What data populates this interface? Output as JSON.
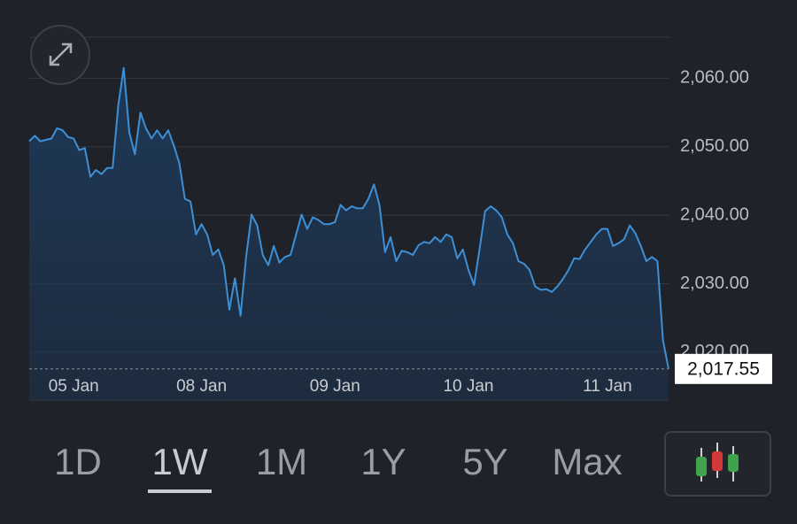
{
  "chart_data": {
    "type": "line",
    "x": [
      0,
      1,
      2,
      3,
      4,
      5,
      6,
      7,
      8,
      9,
      10,
      11,
      12,
      13,
      14,
      15,
      16,
      17,
      18,
      19,
      20,
      21,
      22,
      23,
      24,
      25,
      26,
      27,
      28,
      29,
      30,
      31,
      32,
      33,
      34,
      35,
      36,
      37,
      38,
      39,
      40,
      41,
      42,
      43,
      44,
      45,
      46,
      47,
      48,
      49,
      50,
      51,
      52,
      53,
      54,
      55,
      56,
      57,
      58,
      59,
      60,
      61,
      62,
      63,
      64,
      65,
      66,
      67,
      68,
      69,
      70,
      71,
      72,
      73,
      74,
      75,
      76,
      77,
      78,
      79,
      80,
      81,
      82,
      83,
      84,
      85,
      86,
      87,
      88,
      89,
      90,
      91,
      92,
      93,
      94,
      95,
      96,
      97,
      98,
      99,
      100,
      101,
      102,
      103,
      104,
      105,
      106,
      107,
      108,
      109,
      110,
      111,
      112,
      113,
      114,
      115
    ],
    "series": [
      {
        "color": "#3d8fd6",
        "values": [
          2050.8,
          2051.6,
          2050.8,
          2051,
          2051.2,
          2052.7,
          2052.4,
          2051.4,
          2051.2,
          2049.5,
          2049.8,
          2045.6,
          2046.6,
          2046,
          2046.9,
          2046.9,
          2056,
          2061.5,
          2052.1,
          2048.9,
          2055,
          2052.7,
          2051.2,
          2052.4,
          2051.2,
          2052.4,
          2050.2,
          2047.6,
          2042.4,
          2042,
          2037.2,
          2038.7,
          2037.2,
          2034.2,
          2035,
          2032.7,
          2026.2,
          2030.8,
          2025.3,
          2033.9,
          2040.1,
          2038.5,
          2034.2,
          2032.7,
          2035.5,
          2033.1,
          2033.9,
          2034.2,
          2037.2,
          2040.1,
          2038,
          2039.7,
          2039.3,
          2038.7,
          2038.7,
          2039,
          2041.5,
          2040.7,
          2041.3,
          2041,
          2041,
          2042.4,
          2044.5,
          2041.5,
          2034.6,
          2036.8,
          2033.3,
          2034.8,
          2034.6,
          2034.2,
          2035.6,
          2036.1,
          2035.9,
          2036.8,
          2036.1,
          2037.2,
          2036.8,
          2033.7,
          2035,
          2032,
          2029.8,
          2035,
          2040.6,
          2041.3,
          2040.7,
          2039.7,
          2037.2,
          2035.9,
          2033.3,
          2032.9,
          2032,
          2029.6,
          2029.1,
          2029.2,
          2028.8,
          2029.6,
          2030.7,
          2032,
          2033.7,
          2033.6,
          2035,
          2036.1,
          2037.2,
          2038,
          2038,
          2035.5,
          2035.9,
          2036.5,
          2038.5,
          2037.4,
          2035.5,
          2033.3,
          2033.9,
          2033.3,
          2021.7,
          2017.55
        ]
      }
    ],
    "current_label": "2,017.55",
    "xlim": [
      0,
      115
    ],
    "xticks": [
      {
        "value": 8,
        "label": "05 Jan"
      },
      {
        "value": 31,
        "label": "08 Jan"
      },
      {
        "value": 55,
        "label": "09 Jan"
      },
      {
        "value": 79,
        "label": "10 Jan"
      },
      {
        "value": 104,
        "label": "11 Jan"
      }
    ],
    "ylim": [
      2013,
      2066
    ],
    "yticks": [
      {
        "value": 2020,
        "label": "2,020.00"
      },
      {
        "value": 2030,
        "label": "2,030.00"
      },
      {
        "value": 2040,
        "label": "2,040.00"
      },
      {
        "value": 2050,
        "label": "2,050.00"
      },
      {
        "value": 2060,
        "label": "2,060.00"
      }
    ],
    "grid": true
  },
  "ranges": [
    "1D",
    "1W",
    "1M",
    "1Y",
    "5Y",
    "Max"
  ],
  "active_range": 1
}
